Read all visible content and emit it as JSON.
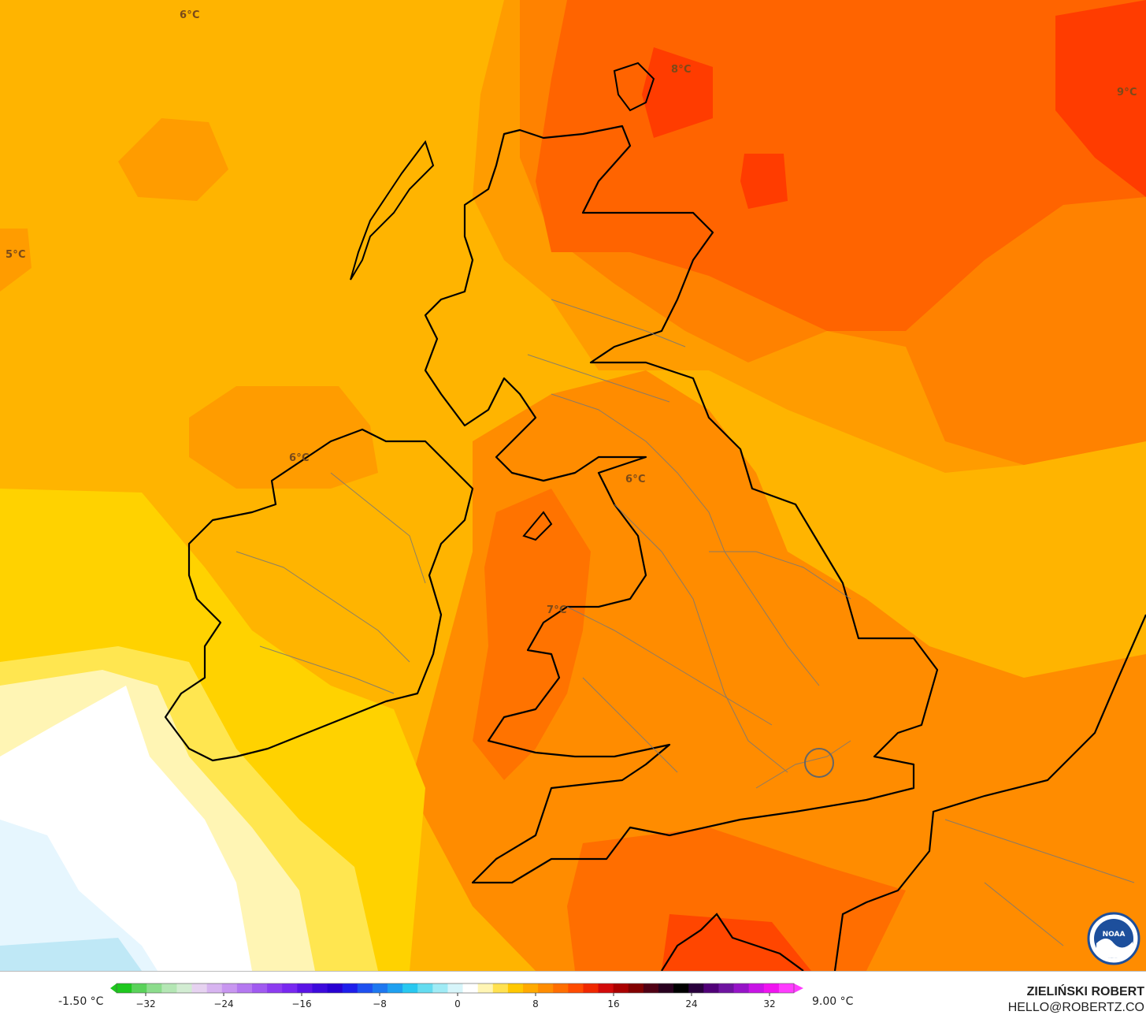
{
  "map": {
    "labels": [
      {
        "id": "6c-top",
        "text": "6°C"
      },
      {
        "id": "8c-north",
        "text": "8°C"
      },
      {
        "id": "9c-ne",
        "text": "9°C"
      },
      {
        "id": "5c-west",
        "text": "5°C"
      },
      {
        "id": "6c-ireland",
        "text": "6°C"
      },
      {
        "id": "6c-pennines",
        "text": "6°C"
      },
      {
        "id": "7c-wales",
        "text": "7°C"
      }
    ]
  },
  "legend": {
    "min_value": "-1.50 °C",
    "max_value": "9.00 °C",
    "ticks": [
      "−32",
      "−24",
      "−16",
      "−8",
      "0",
      "8",
      "16",
      "24",
      "32"
    ],
    "colors": [
      "#1ec81e",
      "#5ad25a",
      "#8cdc8c",
      "#b4e6b4",
      "#d2ecd2",
      "#e6d2f0",
      "#d7b4f0",
      "#c896f0",
      "#b478f0",
      "#a05af0",
      "#8c3cf0",
      "#7828f0",
      "#5a14e6",
      "#3c0adc",
      "#2800d2",
      "#1e1eeb",
      "#1e50f0",
      "#1e78f0",
      "#1ea0f0",
      "#28c8f0",
      "#64dcf0",
      "#a0ebf5",
      "#d7f5fa",
      "#ffffff",
      "#fff5b4",
      "#ffe150",
      "#ffc800",
      "#ffaa00",
      "#ff8c00",
      "#ff6e00",
      "#ff4b00",
      "#f02800",
      "#d20a0a",
      "#aa0000",
      "#820000",
      "#500014",
      "#28001e",
      "#000000",
      "#28003c",
      "#500078",
      "#6e14a0",
      "#9614c8",
      "#c814e6",
      "#f014f0",
      "#ff3cff"
    ]
  },
  "author": {
    "name": "ZIELIŃSKI ROBERT",
    "email": "HELLO@ROBERTZ.CO"
  },
  "logo": {
    "text": "NOAA"
  }
}
